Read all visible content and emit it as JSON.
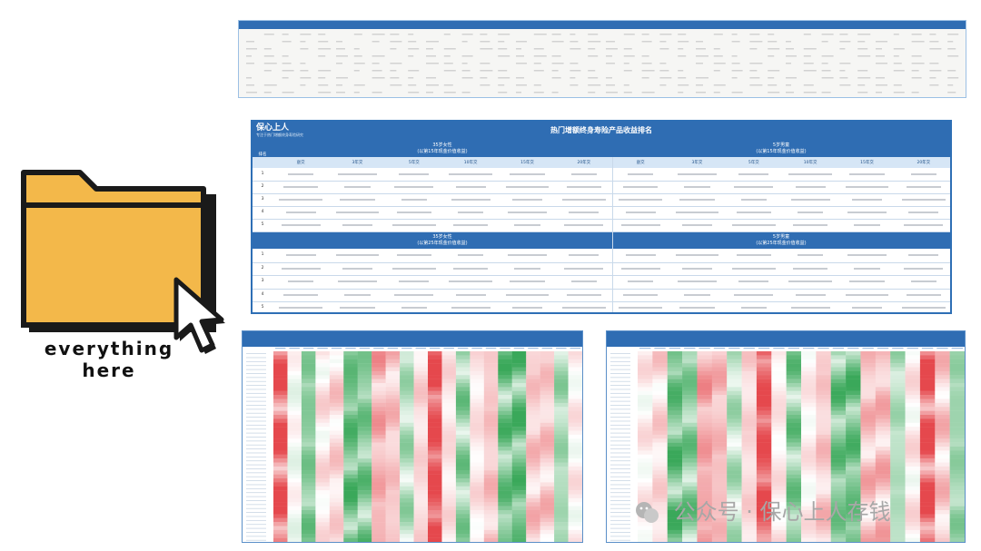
{
  "folder": {
    "caption_line1": "everything",
    "caption_line2": "here",
    "fill_color": "#f3b84a",
    "outline_color": "#1a1a1a"
  },
  "rank_table": {
    "logo": "保心上人",
    "logo_sub": "专注于热门增额终身寿险研究",
    "title": "热门增额终身寿险产品收益排名",
    "rank_header": "排名",
    "section_top_left": [
      "35岁女性",
      "(以第15年现金价值收益)"
    ],
    "section_top_right": [
      "5岁男童",
      "(以第15年现金价值收益)"
    ],
    "section_bottom_left": [
      "35岁女性",
      "(以第25年现金价值收益)"
    ],
    "section_bottom_right": [
      "5岁男童",
      "(以第25年现金价值收益)"
    ],
    "columns": [
      "趸交",
      "3年交",
      "5年交",
      "10年交",
      "15年交",
      "20年交"
    ],
    "ranks": [
      "1",
      "2",
      "3",
      "4",
      "5"
    ]
  },
  "watermark": {
    "text": "公众号 · 保心上人存钱"
  },
  "colors": {
    "header_blue": "#2f6db3",
    "heat_red": "#e5484d",
    "heat_green": "#3aa85a"
  }
}
